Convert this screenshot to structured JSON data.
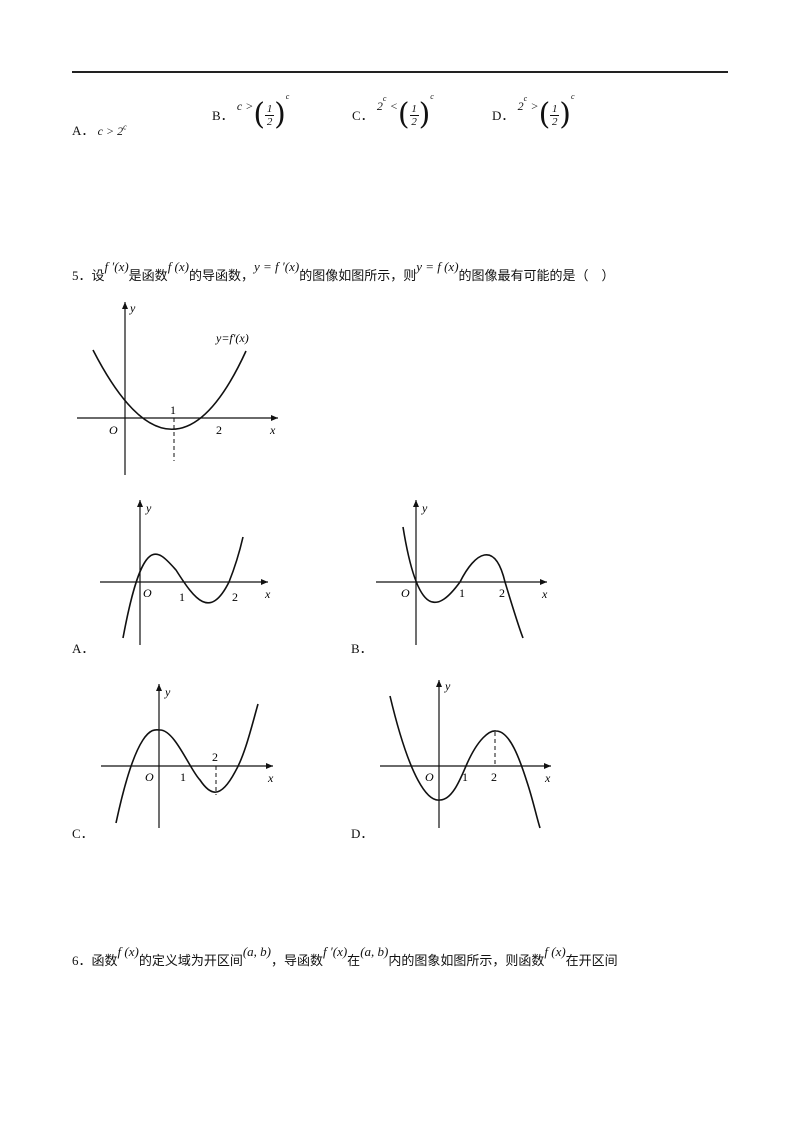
{
  "q4": {
    "options": [
      {
        "label": "A．",
        "expr": "c > 2",
        "sup": "c"
      },
      {
        "label": "B．",
        "lhs": "c >",
        "num": "1",
        "den": "2",
        "sup": "c"
      },
      {
        "label": "C．",
        "lhs": "2",
        "lhs_sup": "c",
        "rel": "<",
        "num": "1",
        "den": "2",
        "sup": "c"
      },
      {
        "label": "D．",
        "lhs": "2",
        "lhs_sup": "c",
        "rel": ">",
        "num": "1",
        "den": "2",
        "sup": "c"
      }
    ]
  },
  "q5": {
    "number": "5．",
    "t1": "设",
    "m1": "f ′(x)",
    "t2": "是函数",
    "m2": "f (x)",
    "t3": "的导函数，",
    "m3": "y = f ′(x)",
    "t4": "的图像如图所示，则",
    "m4": "y = f (x)",
    "t5": "的图像最有可能的是（　）",
    "main_graph": {
      "curve_label": "y=f′(x)",
      "y": "y",
      "x": "x",
      "o": "O",
      "tick1": "1",
      "tick2": "2"
    },
    "graphs": [
      {
        "label": "A．",
        "y": "y",
        "x": "x",
        "o": "O",
        "t1": "1",
        "t2": "2"
      },
      {
        "label": "B．",
        "y": "y",
        "x": "x",
        "o": "O",
        "t1": "1",
        "t2": "2"
      },
      {
        "label": "C．",
        "y": "y",
        "x": "x",
        "o": "O",
        "t1": "1",
        "t2": "2"
      },
      {
        "label": "D．",
        "y": "y",
        "x": "x",
        "o": "O",
        "t1": "1",
        "t2": "2"
      }
    ]
  },
  "q6": {
    "number": "6．",
    "t1": "函数",
    "m1": "f (x)",
    "t2": "的定义域为开区间",
    "m2": "(a, b)",
    "t3": "，导函数",
    "m3": "f ′(x)",
    "t4": "在",
    "m4": "(a, b)",
    "t5": "内的图象如图所示，则函数",
    "m5": "f (x)",
    "t6": "在开区间"
  }
}
